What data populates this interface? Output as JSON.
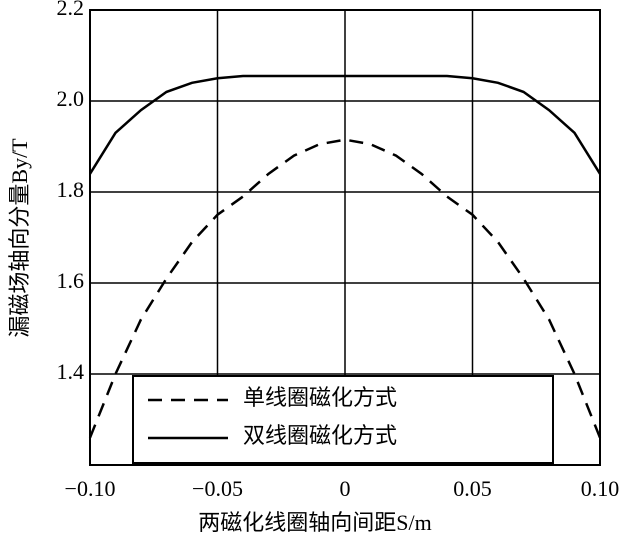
{
  "chart_data": {
    "type": "line",
    "xlabel": "两磁化线圈轴向间距S/m",
    "ylabel": "漏磁场轴向分量By/T",
    "x": [
      -0.1,
      -0.09,
      -0.08,
      -0.07,
      -0.06,
      -0.05,
      -0.04,
      -0.03,
      -0.02,
      -0.01,
      0,
      0.01,
      0.02,
      0.03,
      0.04,
      0.05,
      0.06,
      0.07,
      0.08,
      0.09,
      0.1
    ],
    "series": [
      {
        "name": "单线圈磁化方式",
        "color": "#000000",
        "dash": true,
        "values": [
          1.26,
          1.4,
          1.52,
          1.61,
          1.69,
          1.75,
          1.79,
          1.84,
          1.88,
          1.905,
          1.915,
          1.905,
          1.88,
          1.84,
          1.79,
          1.75,
          1.69,
          1.61,
          1.52,
          1.4,
          1.26
        ]
      },
      {
        "name": "双线圈磁化方式",
        "color": "#000000",
        "dash": false,
        "values": [
          1.84,
          1.93,
          1.98,
          2.02,
          2.04,
          2.05,
          2.055,
          2.055,
          2.055,
          2.055,
          2.055,
          2.055,
          2.055,
          2.055,
          2.055,
          2.05,
          2.04,
          2.02,
          1.98,
          1.93,
          1.84
        ]
      }
    ],
    "xlim": [
      -0.1,
      0.1
    ],
    "xticks": [
      {
        "value": -0.1,
        "label": "−0.10"
      },
      {
        "value": -0.05,
        "label": "−0.05"
      },
      0,
      0.05,
      {
        "value": 0.1,
        "label": "0.10"
      }
    ],
    "ylim": [
      1.2,
      2.2
    ],
    "yticks": [
      1.4,
      1.6,
      1.8,
      {
        "value": 2.0,
        "label": "2.0"
      },
      2.2
    ],
    "grid": true,
    "legend": "bottom"
  }
}
